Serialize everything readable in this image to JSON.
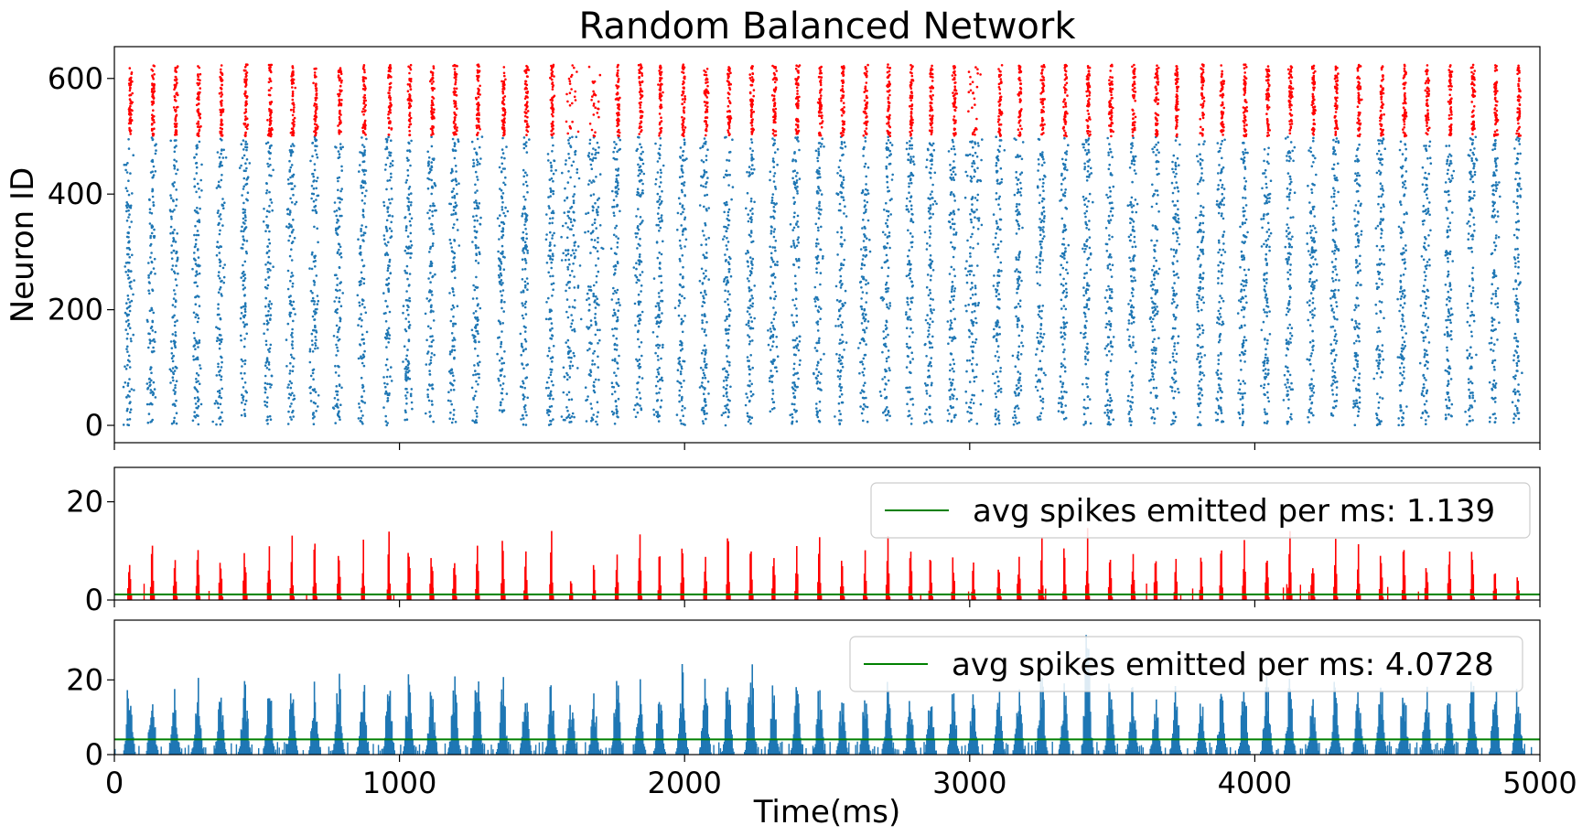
{
  "colors": {
    "excitatory": "#1f77b4",
    "inhibitory": "#ff0000",
    "average": "#008000"
  },
  "chart_data": [
    {
      "type": "scatter",
      "title": "Random Balanced Network",
      "xlabel": "",
      "ylabel": "Neuron ID",
      "xlim": [
        0,
        5000
      ],
      "ylim": [
        -30,
        655
      ],
      "yticks": [
        0,
        200,
        400,
        600
      ],
      "xtick_values": [
        0,
        1000,
        2000,
        3000,
        4000,
        5000
      ],
      "excitatory_neuron_range": [
        0,
        499
      ],
      "inhibitory_neuron_range": [
        500,
        624
      ],
      "burst_times_ms": [
        50,
        130,
        210,
        290,
        370,
        455,
        540,
        620,
        700,
        785,
        870,
        960,
        1030,
        1110,
        1190,
        1270,
        1360,
        1440,
        1530,
        1600,
        1680,
        1760,
        1840,
        1910,
        1990,
        2070,
        2150,
        2230,
        2310,
        2390,
        2470,
        2550,
        2630,
        2710,
        2790,
        2860,
        2940,
        3010,
        3100,
        3170,
        3250,
        3330,
        3410,
        3490,
        3570,
        3650,
        3720,
        3810,
        3880,
        3960,
        4040,
        4120,
        4200,
        4280,
        4360,
        4440,
        4520,
        4600,
        4680,
        4760,
        4840,
        4920
      ]
    },
    {
      "type": "bar",
      "xlabel": "",
      "ylabel": "",
      "xlim": [
        0,
        5000
      ],
      "ylim": [
        0,
        27
      ],
      "yticks": [
        0,
        20
      ],
      "average_label": "avg spikes emitted per ms: 1.139",
      "average_value": 1.139,
      "peak_values": [
        15,
        14,
        14,
        15,
        15,
        15,
        14,
        14,
        15,
        13,
        14,
        16,
        16,
        14,
        13,
        18,
        16,
        14,
        15,
        6,
        9,
        10,
        16,
        13,
        16,
        14,
        16,
        16,
        13,
        13,
        15,
        11,
        11,
        14,
        14,
        11,
        12,
        9,
        11,
        14,
        14,
        14,
        16,
        15,
        15,
        14,
        13,
        12,
        12,
        14,
        15,
        16,
        14,
        15,
        15,
        15,
        14,
        11,
        14,
        14,
        10,
        6
      ]
    },
    {
      "type": "bar",
      "xlabel": "Time(ms)",
      "ylabel": "",
      "xlim": [
        0,
        5000
      ],
      "ylim": [
        0,
        36
      ],
      "yticks": [
        0,
        20
      ],
      "xticks": [
        "0",
        "1000",
        "2000",
        "3000",
        "4000",
        "5000"
      ],
      "average_label": "avg spikes emitted per ms: 4.0728",
      "average_value": 4.0728,
      "peak_values": [
        25,
        21,
        18,
        22,
        21,
        23,
        23,
        20,
        21,
        24,
        24,
        21,
        22,
        22,
        25,
        28,
        22,
        21,
        22,
        16,
        18,
        24,
        22,
        20,
        25,
        22,
        24,
        29,
        21,
        23,
        20,
        19,
        17,
        21,
        18,
        18,
        19,
        19,
        18,
        21,
        24,
        20,
        36,
        22,
        20,
        20,
        19,
        16,
        18,
        23,
        25,
        22,
        21,
        22,
        21,
        24,
        21,
        20,
        19,
        24,
        21,
        20
      ]
    }
  ]
}
